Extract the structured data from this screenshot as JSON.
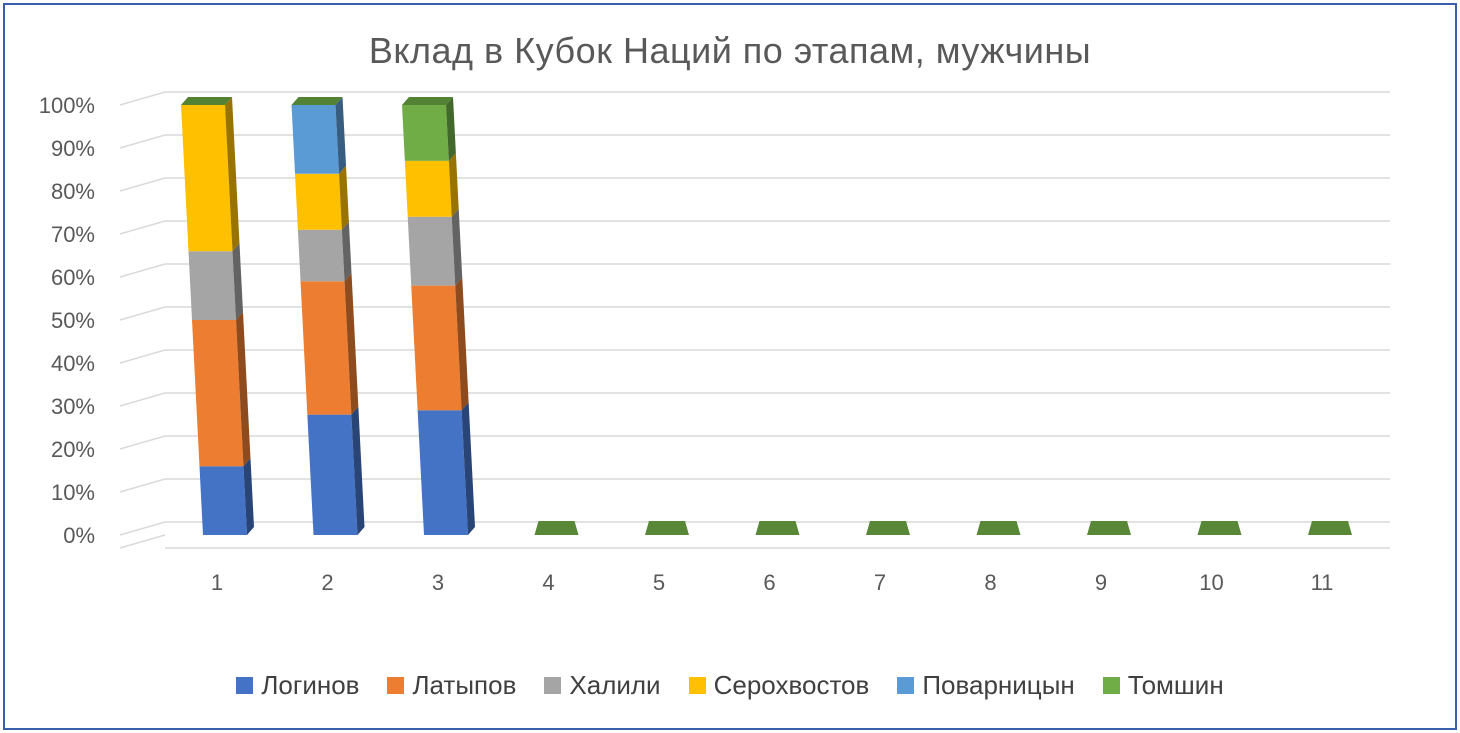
{
  "chart_data": {
    "type": "bar",
    "stacked": true,
    "percent": true,
    "three_d": true,
    "title": "Вклад в Кубок Наций по этапам, мужчины",
    "categories": [
      "1",
      "2",
      "3",
      "4",
      "5",
      "6",
      "7",
      "8",
      "9",
      "10",
      "11"
    ],
    "yticks": [
      "0%",
      "10%",
      "20%",
      "30%",
      "40%",
      "50%",
      "60%",
      "70%",
      "80%",
      "90%",
      "100%"
    ],
    "ylim": [
      0,
      100
    ],
    "grid": true,
    "legend_position": "bottom",
    "series": [
      {
        "name": "Логинов",
        "color": "#4472c4",
        "values": [
          16,
          28,
          29,
          0,
          0,
          0,
          0,
          0,
          0,
          0,
          0
        ]
      },
      {
        "name": "Латыпов",
        "color": "#ed7d31",
        "values": [
          34,
          31,
          29,
          0,
          0,
          0,
          0,
          0,
          0,
          0,
          0
        ]
      },
      {
        "name": "Халили",
        "color": "#a5a5a5",
        "values": [
          16,
          12,
          16,
          0,
          0,
          0,
          0,
          0,
          0,
          0,
          0
        ]
      },
      {
        "name": "Серохвостов",
        "color": "#ffc000",
        "values": [
          34,
          13,
          13,
          0,
          0,
          0,
          0,
          0,
          0,
          0,
          0
        ]
      },
      {
        "name": "Поварницын",
        "color": "#5b9bd5",
        "values": [
          0,
          16,
          0,
          0,
          0,
          0,
          0,
          0,
          0,
          0,
          0
        ]
      },
      {
        "name": "Томшин",
        "color": "#70ad47",
        "values": [
          0,
          0,
          13,
          0,
          0,
          0,
          0,
          0,
          0,
          0,
          0
        ]
      }
    ]
  }
}
